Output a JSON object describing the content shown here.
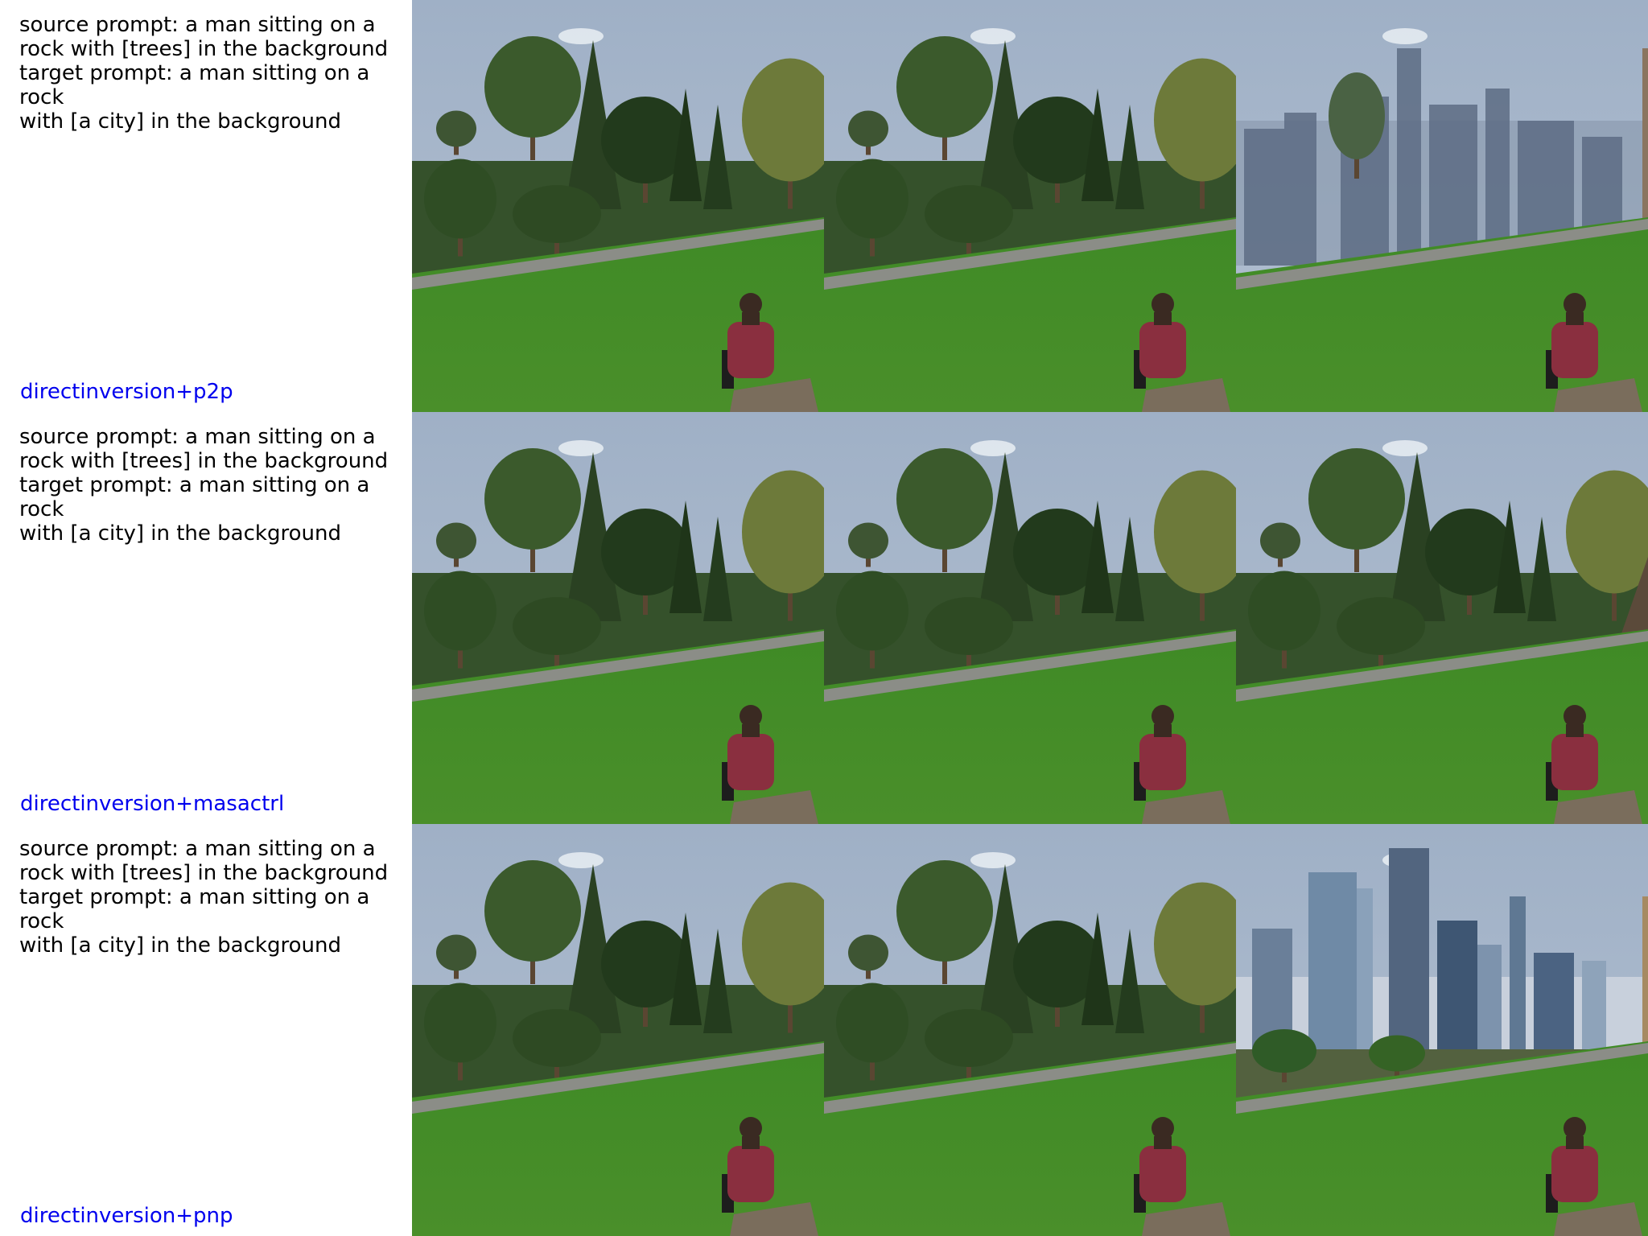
{
  "rows": [
    {
      "prompts": "source prompt: a man sitting on a\nrock with [trees] in the background\ntarget prompt: a man sitting on a rock\nwith [a city] in the background",
      "method": "directinversion+p2p",
      "images": [
        {
          "scene": "park-trees",
          "alt": "source image"
        },
        {
          "scene": "park-trees",
          "alt": "reconstruction"
        },
        {
          "scene": "park-city-blurry",
          "alt": "edited result"
        }
      ]
    },
    {
      "prompts": "source prompt: a man sitting on a\nrock with [trees] in the background\ntarget prompt: a man sitting on a rock\nwith [a city] in the background",
      "method": "directinversion+masactrl",
      "images": [
        {
          "scene": "park-trees",
          "alt": "source image"
        },
        {
          "scene": "park-trees",
          "alt": "reconstruction"
        },
        {
          "scene": "park-trees-rocks",
          "alt": "edited result"
        }
      ]
    },
    {
      "prompts": "source prompt: a man sitting on a\nrock with [trees] in the background\ntarget prompt: a man sitting on a rock\nwith [a city] in the background",
      "method": "directinversion+pnp",
      "images": [
        {
          "scene": "park-trees",
          "alt": "source image"
        },
        {
          "scene": "park-trees",
          "alt": "reconstruction"
        },
        {
          "scene": "park-city-skyline",
          "alt": "edited result"
        }
      ]
    }
  ],
  "colors": {
    "method_label": "#0000ee",
    "sky": "#b4c1d2",
    "grass": "#4a8f2a",
    "shirt": "#8a2f3f"
  }
}
